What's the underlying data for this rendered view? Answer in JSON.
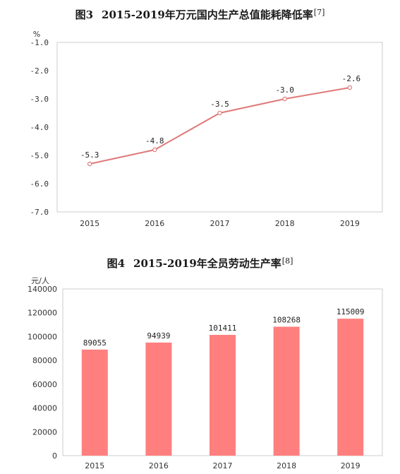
{
  "figures": [
    {
      "fig_no": "图3",
      "title": "2015-2019年万元国内生产总值能耗降低率",
      "ref": "[7]"
    },
    {
      "fig_no": "图4",
      "title": "2015-2019年全员劳动生产率",
      "ref": "[8]"
    }
  ],
  "chart_data": [
    {
      "type": "line",
      "title": "图3 2015-2019年万元国内生产总值能耗降低率",
      "ylabel": "%",
      "categories": [
        "2015",
        "2016",
        "2017",
        "2018",
        "2019"
      ],
      "values": [
        -5.3,
        -4.8,
        -3.5,
        -3.0,
        -2.6
      ],
      "data_labels": [
        "-5.3",
        "-4.8",
        "-3.5",
        "-3.0",
        "-2.6"
      ],
      "yticks": [
        "-1.0",
        "-2.0",
        "-3.0",
        "-4.0",
        "-5.0",
        "-6.0",
        "-7.0"
      ],
      "ylim": [
        -7.0,
        -1.0
      ],
      "grid": false,
      "colors": {
        "line": "#e07a7a",
        "marker_fill": "#ffffff",
        "plot_bg": "#ffffff",
        "border": "#cccccc"
      }
    },
    {
      "type": "bar",
      "title": "图4 2015-2019年全员劳动生产率",
      "ylabel": "元/人",
      "categories": [
        "2015",
        "2016",
        "2017",
        "2018",
        "2019"
      ],
      "values": [
        89055,
        94939,
        101411,
        108268,
        115009
      ],
      "data_labels": [
        "89055",
        "94939",
        "101411",
        "108268",
        "115009"
      ],
      "yticks": [
        "140000",
        "120000",
        "100000",
        "80000",
        "60000",
        "40000",
        "20000",
        "0"
      ],
      "ylim": [
        0,
        140000
      ],
      "grid": false,
      "colors": {
        "bar": "#ff7f7f",
        "plot_bg": "#ffffff",
        "border": "#cccccc"
      }
    }
  ]
}
